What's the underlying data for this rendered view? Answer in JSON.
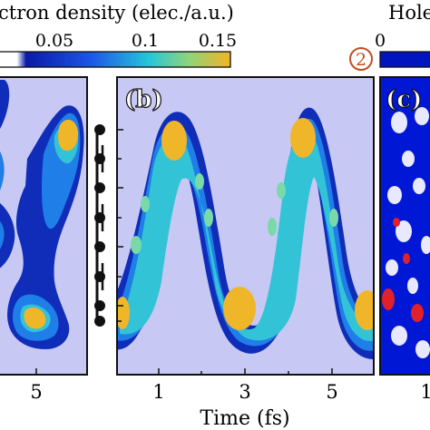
{
  "figure": {
    "colorbar_left": {
      "title": "ctron density (elec./a.u.)",
      "ticks": [
        "0.05",
        "0.1",
        "0.15"
      ],
      "stops": [
        "#ffffff",
        "#0a1aa8",
        "#1d56e6",
        "#25c7d8",
        "#8fd37a",
        "#f2b424"
      ]
    },
    "colorbar_right": {
      "title": "Hole",
      "ticks": [
        "0"
      ],
      "marker": "2",
      "stops": [
        "#0012a8",
        "#0018d0"
      ]
    },
    "panel_a": {
      "xticks": [
        "5"
      ]
    },
    "panel_b": {
      "label": "(b)",
      "xlabel": "Time (fs)",
      "xticks": [
        "1",
        "3",
        "5"
      ]
    },
    "panel_c": {
      "label": "(c)",
      "xticks": [
        "1"
      ]
    },
    "colors": {
      "background": "#c8c8f4",
      "low": "#0f2db8",
      "mid1": "#1f7ee8",
      "mid2": "#33c3d6",
      "mid3": "#79d9a8",
      "high": "#f0b62a",
      "hole_bg": "#0018d6"
    }
  }
}
